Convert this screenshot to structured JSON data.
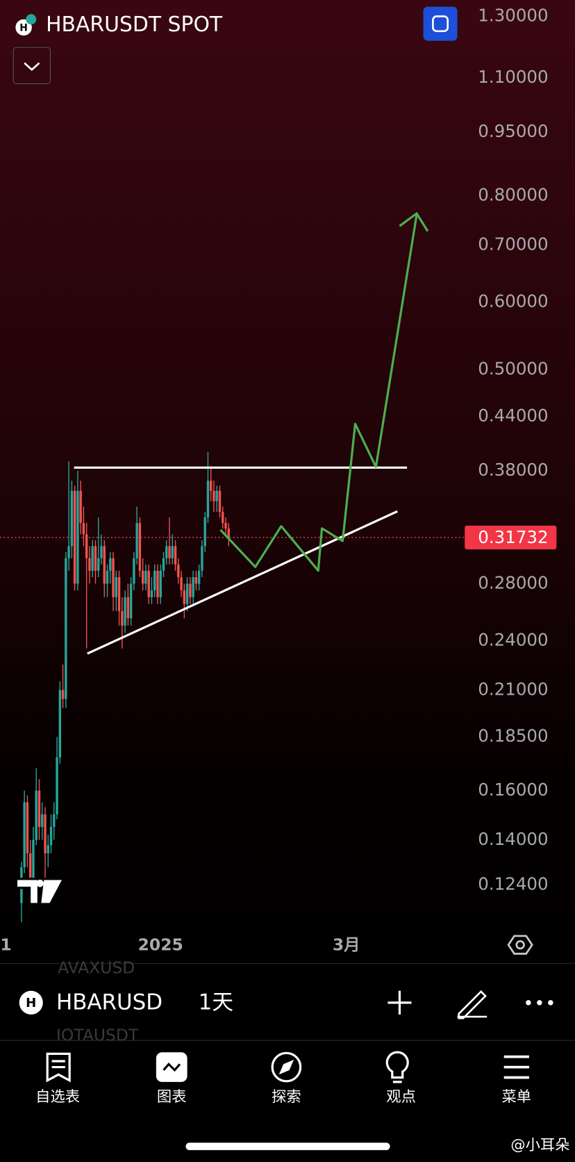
{
  "header": {
    "title": "HBARUSDT SPOT"
  },
  "chart_data": {
    "type": "candlestick",
    "log_scale": true,
    "up_color": "#26a69a",
    "down_color": "#ef5350",
    "open": [
      0.118,
      0.13,
      0.155,
      0.135,
      0.125,
      0.14,
      0.16,
      0.145,
      0.15,
      0.135,
      0.138,
      0.145,
      0.15,
      0.175,
      0.21,
      0.205,
      0.3,
      0.31,
      0.36,
      0.28,
      0.36,
      0.33,
      0.32,
      0.3,
      0.29,
      0.31,
      0.29,
      0.3,
      0.31,
      0.28,
      0.29,
      0.3,
      0.27,
      0.285,
      0.26,
      0.25,
      0.27,
      0.255,
      0.28,
      0.3,
      0.33,
      0.29,
      0.28,
      0.29,
      0.27,
      0.275,
      0.29,
      0.27,
      0.29,
      0.3,
      0.31,
      0.3,
      0.31,
      0.295,
      0.285,
      0.275,
      0.265,
      0.28,
      0.27,
      0.285,
      0.28,
      0.29,
      0.31,
      0.335,
      0.37,
      0.36,
      0.35,
      0.36,
      0.34,
      0.33,
      0.325
    ],
    "high": [
      0.132,
      0.16,
      0.158,
      0.14,
      0.145,
      0.17,
      0.165,
      0.155,
      0.153,
      0.142,
      0.15,
      0.155,
      0.185,
      0.215,
      0.225,
      0.305,
      0.39,
      0.37,
      0.365,
      0.38,
      0.37,
      0.345,
      0.33,
      0.31,
      0.315,
      0.315,
      0.335,
      0.32,
      0.315,
      0.295,
      0.305,
      0.305,
      0.29,
      0.29,
      0.27,
      0.275,
      0.28,
      0.285,
      0.305,
      0.345,
      0.335,
      0.3,
      0.295,
      0.295,
      0.285,
      0.295,
      0.295,
      0.295,
      0.305,
      0.315,
      0.335,
      0.32,
      0.315,
      0.3,
      0.29,
      0.28,
      0.285,
      0.285,
      0.29,
      0.29,
      0.295,
      0.315,
      0.34,
      0.4,
      0.385,
      0.37,
      0.365,
      0.365,
      0.345,
      0.335,
      0.33
    ],
    "low": [
      0.112,
      0.128,
      0.13,
      0.12,
      0.122,
      0.138,
      0.14,
      0.14,
      0.125,
      0.13,
      0.135,
      0.14,
      0.148,
      0.172,
      0.2,
      0.2,
      0.29,
      0.3,
      0.275,
      0.275,
      0.32,
      0.31,
      0.235,
      0.28,
      0.285,
      0.28,
      0.285,
      0.295,
      0.27,
      0.27,
      0.28,
      0.26,
      0.26,
      0.25,
      0.235,
      0.245,
      0.25,
      0.25,
      0.275,
      0.295,
      0.285,
      0.275,
      0.275,
      0.265,
      0.265,
      0.27,
      0.265,
      0.265,
      0.285,
      0.295,
      0.295,
      0.295,
      0.29,
      0.28,
      0.27,
      0.255,
      0.26,
      0.265,
      0.265,
      0.275,
      0.275,
      0.285,
      0.305,
      0.33,
      0.35,
      0.34,
      0.34,
      0.335,
      0.325,
      0.32,
      0.31
    ],
    "close": [
      0.13,
      0.155,
      0.135,
      0.125,
      0.14,
      0.16,
      0.145,
      0.15,
      0.135,
      0.138,
      0.145,
      0.15,
      0.175,
      0.21,
      0.205,
      0.3,
      0.31,
      0.36,
      0.28,
      0.36,
      0.33,
      0.32,
      0.3,
      0.29,
      0.31,
      0.29,
      0.3,
      0.31,
      0.28,
      0.29,
      0.3,
      0.27,
      0.285,
      0.26,
      0.25,
      0.27,
      0.255,
      0.28,
      0.3,
      0.33,
      0.29,
      0.28,
      0.29,
      0.27,
      0.275,
      0.29,
      0.27,
      0.29,
      0.3,
      0.31,
      0.3,
      0.31,
      0.295,
      0.285,
      0.275,
      0.265,
      0.28,
      0.27,
      0.285,
      0.28,
      0.29,
      0.31,
      0.335,
      0.37,
      0.36,
      0.35,
      0.36,
      0.34,
      0.33,
      0.325,
      0.31732
    ],
    "ylim": [
      0.1108,
      1.3586
    ],
    "yticks": [
      {
        "value": 1.3,
        "label": "1.30000"
      },
      {
        "value": 1.1,
        "label": "1.10000"
      },
      {
        "value": 0.95,
        "label": "0.95000"
      },
      {
        "value": 0.8,
        "label": "0.80000"
      },
      {
        "value": 0.7,
        "label": "0.70000"
      },
      {
        "value": 0.6,
        "label": "0.60000"
      },
      {
        "value": 0.5,
        "label": "0.50000"
      },
      {
        "value": 0.44,
        "label": "0.44000"
      },
      {
        "value": 0.38,
        "label": "0.38000"
      },
      {
        "value": 0.28,
        "label": "0.28000"
      },
      {
        "value": 0.24,
        "label": "0.24000"
      },
      {
        "value": 0.21,
        "label": "0.21000"
      },
      {
        "value": 0.185,
        "label": "0.18500"
      },
      {
        "value": 0.16,
        "label": "0.16000"
      },
      {
        "value": 0.14,
        "label": "0.14000"
      },
      {
        "value": 0.124,
        "label": "0.12400"
      }
    ],
    "xlim": [
      -7.25,
      187
    ],
    "xticks": [
      {
        "value": -5.25,
        "label": "1"
      },
      {
        "value": 47,
        "label": "2025"
      },
      {
        "value": 109.75,
        "label": "3月"
      }
    ]
  },
  "toolbar": {
    "symbol": "HBARUSD",
    "interval": "1天",
    "ghost_above": "AVAXUSD",
    "ghost_below": "IOTAUSDT"
  },
  "nav": [
    "自选表",
    "图表",
    "探索",
    "观点",
    "菜单"
  ],
  "watermark": "@小耳朵"
}
